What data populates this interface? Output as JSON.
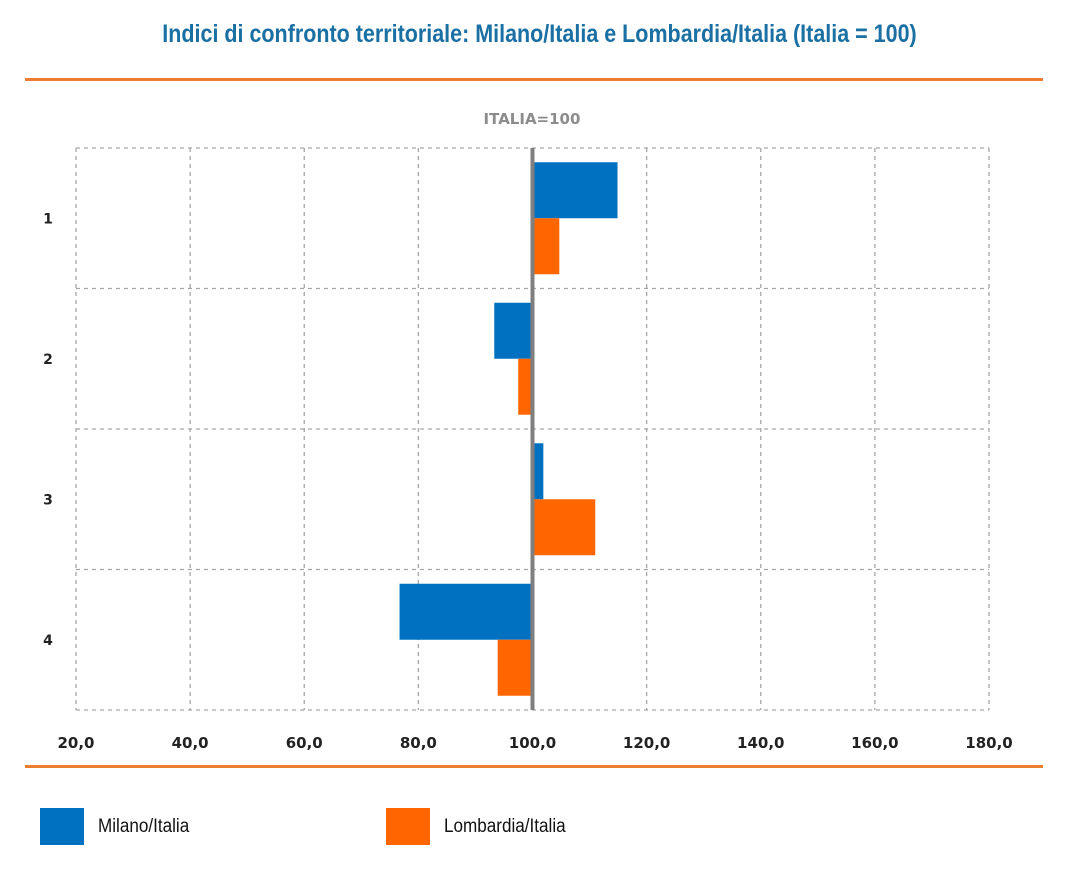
{
  "header": {
    "title": "Indici di confronto territoriale: Milano/Italia e Lombardia/Italia (Italia = 100)"
  },
  "colors": {
    "title": "#1a6fa3",
    "rule": "#ed7d31",
    "milano": "#0070c0",
    "lombardia": "#ff6600",
    "axis_line": "#7f7f7f",
    "grid": "#a6a6a6"
  },
  "chart_data": {
    "type": "bar",
    "orientation": "horizontal",
    "title": "ITALIA=100",
    "xlabel": "",
    "ylabel": "",
    "baseline": 100,
    "xlim": [
      20,
      180
    ],
    "xticks": [
      20,
      40,
      60,
      80,
      100,
      120,
      140,
      160,
      180
    ],
    "xtick_labels": [
      "20,0",
      "40,0",
      "60,0",
      "80,0",
      "100,0",
      "120,0",
      "140,0",
      "160,0",
      "180,0"
    ],
    "categories": [
      "1",
      "2",
      "3",
      "4"
    ],
    "grid": true,
    "legend_position": "bottom",
    "series": [
      {
        "name": "Milano/Italia",
        "values": [
          114.9,
          93.3,
          101.9,
          76.7
        ]
      },
      {
        "name": "Lombardia/Italia",
        "values": [
          104.7,
          97.5,
          111.0,
          93.9
        ]
      }
    ]
  },
  "legend": {
    "items": [
      {
        "label": "Milano/Italia"
      },
      {
        "label": "Lombardia/Italia"
      }
    ]
  }
}
